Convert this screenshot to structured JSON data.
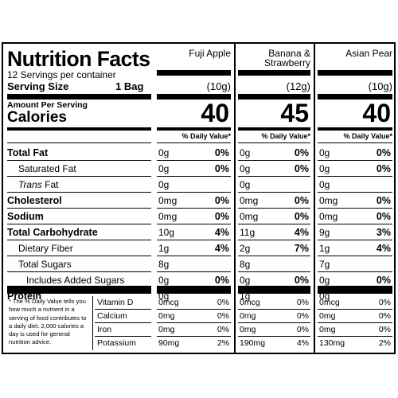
{
  "header": {
    "title": "Nutrition Facts",
    "servings_per_container": "12 Servings per container",
    "serving_size_label": "Serving Size",
    "serving_size_value": "1 Bag",
    "amount_per_serving": "Amount Per Serving",
    "calories_label": "Calories",
    "dv_header": "% Daily Value*"
  },
  "products": [
    {
      "name": "Fuji Apple",
      "serving": "(10g)",
      "calories": "40"
    },
    {
      "name": "Banana & Strawberry",
      "serving": "(12g)",
      "calories": "45"
    },
    {
      "name": "Asian Pear",
      "serving": "(10g)",
      "calories": "40"
    }
  ],
  "nutrients": [
    {
      "label": "Total Fat",
      "bold": true,
      "values": [
        [
          "0g",
          "0%"
        ],
        [
          "0g",
          "0%"
        ],
        [
          "0g",
          "0%"
        ]
      ]
    },
    {
      "label": "Saturated Fat",
      "bold": false,
      "values": [
        [
          "0g",
          "0%"
        ],
        [
          "0g",
          "0%"
        ],
        [
          "0g",
          "0%"
        ]
      ]
    },
    {
      "label_italic": "Trans",
      "label": " Fat",
      "bold": false,
      "values": [
        [
          "0g",
          ""
        ],
        [
          "0g",
          ""
        ],
        [
          "0g",
          ""
        ]
      ]
    },
    {
      "label": "Cholesterol",
      "bold": true,
      "values": [
        [
          "0mg",
          "0%"
        ],
        [
          "0mg",
          "0%"
        ],
        [
          "0mg",
          "0%"
        ]
      ]
    },
    {
      "label": "Sodium",
      "bold": true,
      "values": [
        [
          "0mg",
          "0%"
        ],
        [
          "0mg",
          "0%"
        ],
        [
          "0mg",
          "0%"
        ]
      ]
    },
    {
      "label": "Total Carbohydrate",
      "bold": true,
      "values": [
        [
          "10g",
          "4%"
        ],
        [
          "11g",
          "4%"
        ],
        [
          "9g",
          "3%"
        ]
      ]
    },
    {
      "label": "Dietary Fiber",
      "bold": false,
      "values": [
        [
          "1g",
          "4%"
        ],
        [
          "2g",
          "7%"
        ],
        [
          "1g",
          "4%"
        ]
      ]
    },
    {
      "label": "Total Sugars",
      "bold": false,
      "values": [
        [
          "8g",
          ""
        ],
        [
          "8g",
          ""
        ],
        [
          "7g",
          ""
        ]
      ]
    },
    {
      "label": "Includes Added Sugars",
      "bold": false,
      "values": [
        [
          "0g",
          "0%"
        ],
        [
          "0g",
          "0%"
        ],
        [
          "0g",
          "0%"
        ]
      ]
    },
    {
      "label": "Protein",
      "bold": true,
      "values": [
        [
          "0g",
          ""
        ],
        [
          "1g",
          ""
        ],
        [
          "0g",
          ""
        ]
      ]
    }
  ],
  "footnote": "* The % Daily Value tells you how much a nutrient in a serving of food contributes to a daily diet. 2,000 calories a day is used for general nutrition advice.",
  "vitamins": [
    {
      "label": "Vitamin D",
      "values": [
        [
          "0mcg",
          "0%"
        ],
        [
          "0mcg",
          "0%"
        ],
        [
          "0mcg",
          "0%"
        ]
      ]
    },
    {
      "label": "Calcium",
      "values": [
        [
          "0mg",
          "0%"
        ],
        [
          "0mg",
          "0%"
        ],
        [
          "0mg",
          "0%"
        ]
      ]
    },
    {
      "label": "Iron",
      "values": [
        [
          "0mg",
          "0%"
        ],
        [
          "0mg",
          "0%"
        ],
        [
          "0mg",
          "0%"
        ]
      ]
    },
    {
      "label": "Potassium",
      "values": [
        [
          "90mg",
          "2%"
        ],
        [
          "190mg",
          "4%"
        ],
        [
          "130mg",
          "2%"
        ]
      ]
    }
  ]
}
